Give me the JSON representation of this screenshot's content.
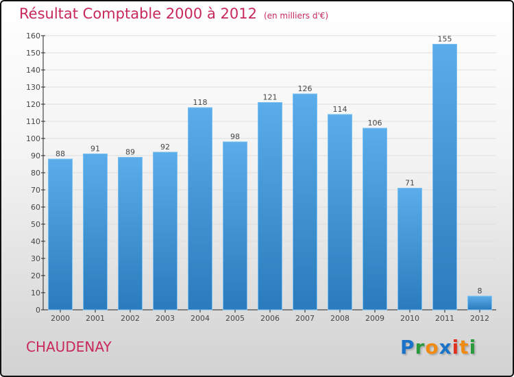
{
  "chart_data": {
    "type": "bar",
    "title": "Résultat Comptable 2000 à 2012",
    "unit": "(en milliers d'€)",
    "categories": [
      "2000",
      "2001",
      "2002",
      "2003",
      "2004",
      "2005",
      "2006",
      "2007",
      "2008",
      "2009",
      "2010",
      "2011",
      "2012"
    ],
    "values": [
      88,
      91,
      89,
      92,
      118,
      98,
      121,
      126,
      114,
      106,
      71,
      155,
      8
    ],
    "ylim": [
      0,
      160
    ],
    "yticks": [
      0,
      10,
      20,
      30,
      40,
      50,
      60,
      70,
      80,
      90,
      100,
      110,
      120,
      130,
      140,
      150,
      160
    ],
    "xlabel": "",
    "ylabel": "",
    "bar_color": "#3a8fd6"
  },
  "commune": "CHAUDENAY",
  "logo": "Proxiti"
}
